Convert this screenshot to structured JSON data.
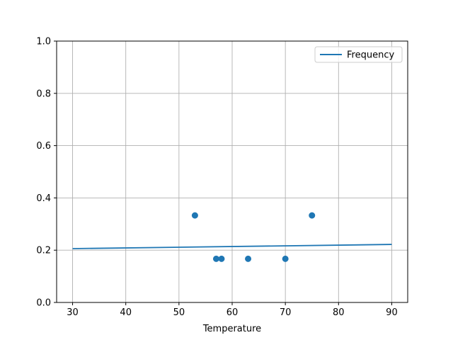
{
  "chart_data": {
    "type": "scatter",
    "title": "",
    "xlabel": "Temperature",
    "ylabel": "",
    "xlim": [
      27,
      93
    ],
    "ylim": [
      0.0,
      1.0
    ],
    "grid": true,
    "x_ticks": {
      "values": [
        30,
        40,
        50,
        60,
        70,
        80,
        90
      ],
      "labels": [
        "30",
        "40",
        "50",
        "60",
        "70",
        "80",
        "90"
      ]
    },
    "y_ticks": {
      "values": [
        0.0,
        0.2,
        0.4,
        0.6,
        0.8,
        1.0
      ],
      "labels": [
        "0.0",
        "0.2",
        "0.4",
        "0.6",
        "0.8",
        "1.0"
      ]
    },
    "legend": {
      "location": "upper right",
      "entries": [
        {
          "label": "Frequency",
          "glyph": "line",
          "color": "#1f77b4"
        }
      ]
    },
    "series": [
      {
        "name": "Frequency",
        "type": "line",
        "color": "#1f77b4",
        "x": [
          30,
          90
        ],
        "y": [
          0.206,
          0.222
        ]
      },
      {
        "name": "",
        "type": "scatter",
        "color": "#1f77b4",
        "x": [
          53,
          57,
          58,
          63,
          70,
          75
        ],
        "y": [
          0.333,
          0.167,
          0.167,
          0.167,
          0.167,
          0.333
        ]
      }
    ]
  },
  "colors": {
    "accent": "#1f77b4",
    "grid": "#b0b0b0",
    "spine": "#000000",
    "legend_border": "#cccccc",
    "background": "#ffffff"
  }
}
